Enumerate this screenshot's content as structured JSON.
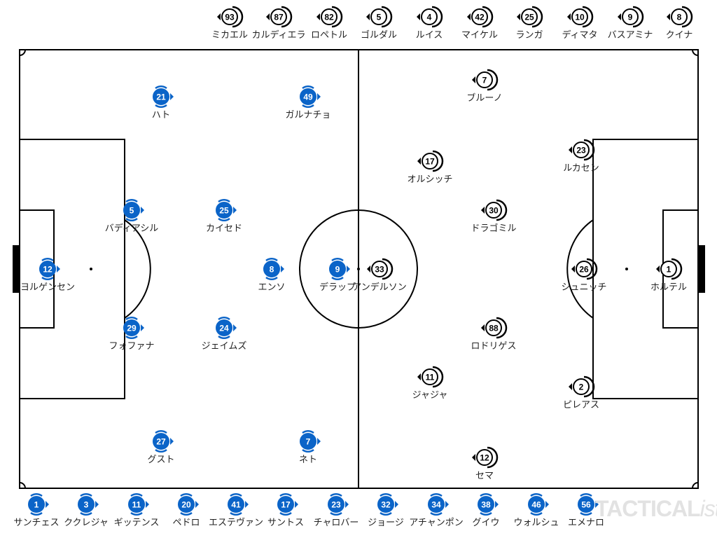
{
  "colors": {
    "home": "#0b64c8",
    "away": "#ffffff",
    "line": "#000000"
  },
  "home_lineup": [
    {
      "number": "12",
      "name": "ヨルゲンセン"
    },
    {
      "number": "5",
      "name": "バディアシル"
    },
    {
      "number": "29",
      "name": "フォファナ"
    },
    {
      "number": "21",
      "name": "ハト"
    },
    {
      "number": "25",
      "name": "カイセド"
    },
    {
      "number": "24",
      "name": "ジェイムズ"
    },
    {
      "number": "27",
      "name": "グスト"
    },
    {
      "number": "8",
      "name": "エンソ"
    },
    {
      "number": "49",
      "name": "ガルナチョ"
    },
    {
      "number": "9",
      "name": "デラップ"
    },
    {
      "number": "7",
      "name": "ネト"
    }
  ],
  "away_lineup": [
    {
      "number": "33",
      "name": "アンデルソン"
    },
    {
      "number": "7",
      "name": "ブルーノ"
    },
    {
      "number": "17",
      "name": "オルシッチ"
    },
    {
      "number": "30",
      "name": "ドラゴミル"
    },
    {
      "number": "88",
      "name": "ロドリゲス"
    },
    {
      "number": "11",
      "name": "ジャジャ"
    },
    {
      "number": "12",
      "name": "セマ"
    },
    {
      "number": "23",
      "name": "ルカセン"
    },
    {
      "number": "26",
      "name": "シュニッチ"
    },
    {
      "number": "2",
      "name": "ピレアス"
    },
    {
      "number": "1",
      "name": "ホルテル"
    }
  ],
  "away_bench": [
    {
      "number": "93",
      "name": "ミカエル"
    },
    {
      "number": "87",
      "name": "カルディエラ"
    },
    {
      "number": "82",
      "name": "ロペトル"
    },
    {
      "number": "5",
      "name": "ゴルダル"
    },
    {
      "number": "4",
      "name": "ルイス"
    },
    {
      "number": "42",
      "name": "マイケル"
    },
    {
      "number": "25",
      "name": "ランガ"
    },
    {
      "number": "10",
      "name": "ディマタ"
    },
    {
      "number": "9",
      "name": "バスアミナ"
    },
    {
      "number": "8",
      "name": "クイナ"
    }
  ],
  "home_bench": [
    {
      "number": "1",
      "name": "サンチェス"
    },
    {
      "number": "3",
      "name": "ククレジャ"
    },
    {
      "number": "11",
      "name": "ギッテンス"
    },
    {
      "number": "20",
      "name": "ペドロ"
    },
    {
      "number": "41",
      "name": "エステヴァン"
    },
    {
      "number": "17",
      "name": "サントス"
    },
    {
      "number": "23",
      "name": "チャロバー"
    },
    {
      "number": "32",
      "name": "ジョージ"
    },
    {
      "number": "34",
      "name": "アチャンポン"
    },
    {
      "number": "38",
      "name": "グイウ"
    },
    {
      "number": "46",
      "name": "ウォルシュ"
    },
    {
      "number": "56",
      "name": "エメナロ"
    }
  ],
  "watermark": {
    "main": "TACTICAL",
    "suffix": "ista"
  }
}
